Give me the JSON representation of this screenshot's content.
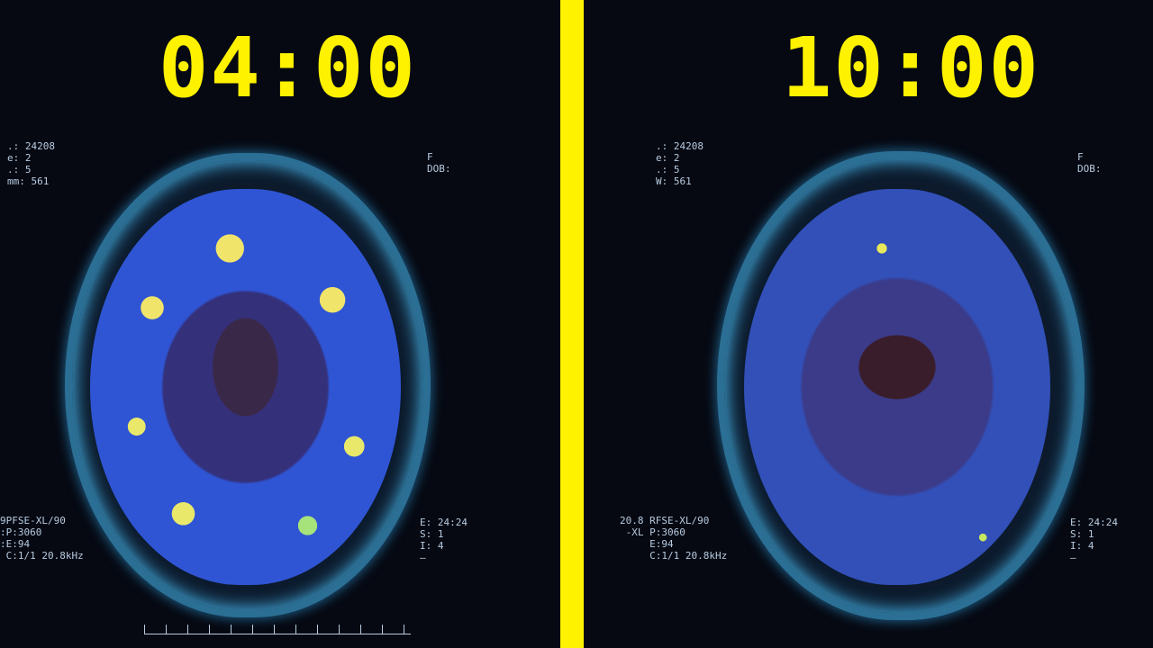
{
  "left": {
    "time_label": "04:00",
    "top_left_meta": ".: 24208\ne: 2\n.: 5\nmm: 561",
    "top_right_meta": "F\nDOB:",
    "bottom_left_meta": "9PFSE-XL/90\n:P:3060\n:E:94\n C:1/1 20.8kHz",
    "bottom_right_meta": "E: 24:24\nS: 1\nI: 4\n—"
  },
  "right": {
    "time_label": "10:00",
    "top_left_meta": ".: 24208\ne: 2\n.: 5\nW: 561",
    "top_right_meta": "F\nDOB:",
    "bottom_left_meta": "20.8 RFSE-XL/90\n -XL P:3060\n     E:94\n     C:1/1 20.8kHz",
    "bottom_right_meta": "E: 24:24\nS: 1\nI: 4\n—"
  },
  "colors": {
    "divider": "#fff200",
    "time_label": "#fff200",
    "background": "#05070f"
  }
}
